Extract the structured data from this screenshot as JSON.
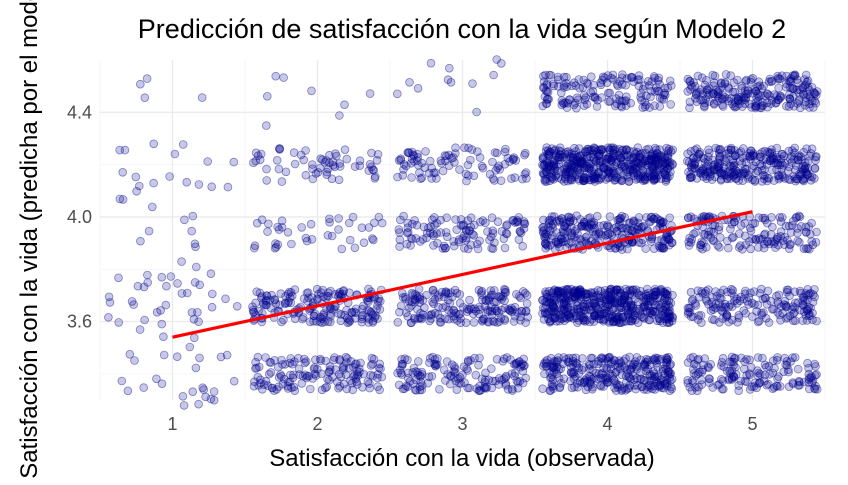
{
  "chart_data": {
    "type": "scatter",
    "title": "Predicción de satisfacción con la vida según Modelo 2",
    "xlabel": "Satisfacción con la vida (observada)",
    "ylabel": "Satisfacción con la vida (predicha por el modelo)",
    "x_ticks": [
      "1",
      "2",
      "3",
      "4",
      "5"
    ],
    "y_ticks": [
      "3.6",
      "4.0",
      "4.4"
    ],
    "xlim": [
      0.5,
      5.5
    ],
    "ylim": [
      3.3,
      4.6
    ],
    "grid": true,
    "legend": "none",
    "point_color": "#00008B",
    "line_color": "#FF0000",
    "jitter_width": 0.45,
    "clusters": [
      {
        "x": 1,
        "bands": [
          {
            "y": 3.38,
            "n": 25
          },
          {
            "y": 3.66,
            "n": 35
          },
          {
            "y": 3.9,
            "n": 10
          },
          {
            "y": 4.16,
            "n": 20
          },
          {
            "y": 4.45,
            "n": 4
          }
        ]
      },
      {
        "x": 2,
        "bands": [
          {
            "y": 3.4,
            "n": 140
          },
          {
            "y": 3.66,
            "n": 180
          },
          {
            "y": 3.94,
            "n": 40
          },
          {
            "y": 4.2,
            "n": 60
          },
          {
            "y": 4.45,
            "n": 8
          }
        ]
      },
      {
        "x": 3,
        "bands": [
          {
            "y": 3.4,
            "n": 140
          },
          {
            "y": 3.66,
            "n": 180
          },
          {
            "y": 3.94,
            "n": 110
          },
          {
            "y": 4.2,
            "n": 90
          },
          {
            "y": 4.48,
            "n": 12
          }
        ]
      },
      {
        "x": 4,
        "bands": [
          {
            "y": 3.4,
            "n": 280
          },
          {
            "y": 3.66,
            "n": 460
          },
          {
            "y": 3.94,
            "n": 260
          },
          {
            "y": 4.2,
            "n": 460
          },
          {
            "y": 4.48,
            "n": 150
          }
        ]
      },
      {
        "x": 5,
        "bands": [
          {
            "y": 3.4,
            "n": 150
          },
          {
            "y": 3.66,
            "n": 170
          },
          {
            "y": 3.94,
            "n": 150
          },
          {
            "y": 4.2,
            "n": 280
          },
          {
            "y": 4.48,
            "n": 220
          }
        ]
      }
    ],
    "band_halfwidth": 0.065,
    "trend_line": {
      "x": [
        1,
        5
      ],
      "y": [
        3.54,
        4.02
      ]
    }
  }
}
